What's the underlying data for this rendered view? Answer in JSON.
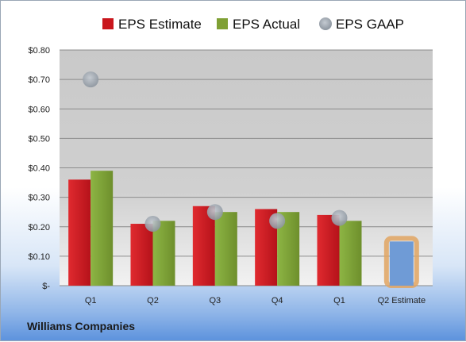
{
  "company": "Williams Companies",
  "chart_data": {
    "type": "bar",
    "categories": [
      "Q1",
      "Q2",
      "Q3",
      "Q4",
      "Q1",
      "Q2 Estimate"
    ],
    "series": [
      {
        "name": "EPS Estimate",
        "color": "#c9161c",
        "values": [
          0.36,
          0.21,
          0.27,
          0.26,
          0.24,
          null
        ]
      },
      {
        "name": "EPS Actual",
        "color": "#7fa034",
        "values": [
          0.39,
          0.22,
          0.25,
          0.25,
          0.22,
          null
        ]
      },
      {
        "name": "EPS GAAP",
        "color": "#9aa3ad",
        "values": [
          0.7,
          0.21,
          0.25,
          0.22,
          0.23,
          null
        ]
      }
    ],
    "forecast": {
      "category_index": 5,
      "value": 0.15,
      "fill": "#6f9bd6",
      "outline": "#e0a562"
    },
    "ylim": [
      0,
      0.8
    ],
    "yticks": [
      0,
      0.1,
      0.2,
      0.3,
      0.4,
      0.5,
      0.6,
      0.7,
      0.8
    ],
    "ytick_labels": [
      "$-",
      "$0.10",
      "$0.20",
      "$0.30",
      "$0.40",
      "$0.50",
      "$0.60",
      "$0.70",
      "$0.80"
    ],
    "grid": true,
    "legend": "top"
  }
}
